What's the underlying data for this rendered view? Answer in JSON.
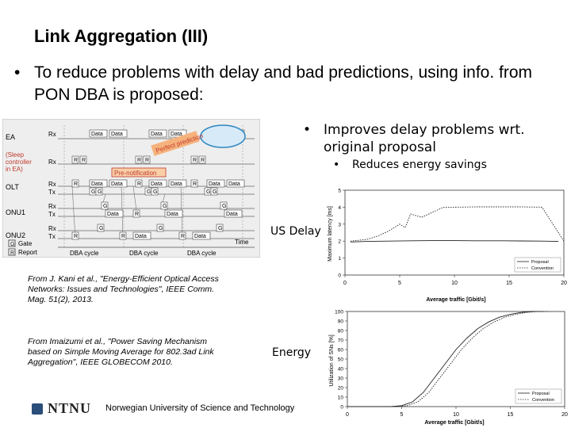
{
  "slide": {
    "title": "Link Aggregation (III)",
    "bullet_main": "To reduce problems with delay and bad predictions, using info. from PON DBA is proposed:",
    "bullet_sub1": "Improves delay problems wrt. original proposal",
    "bullet_sub2": "Reduces energy savings",
    "label_us_delay": "US Delay",
    "label_energy": "Energy",
    "citation1": "From J. Kani et al., \"Energy-Efficient Optical Access Networks: Issues and Technologies\", IEEE Comm. Mag. 51(2), 2013.",
    "citation2": "From Imaizumi et al., \"Power Saving Mechanism based on Simple Moving Average for 802.3ad Link Aggregation\", IEEE GLOBECOM 2010.",
    "footer": "Norwegian University of Science and Technology",
    "logo_text": "NTNU",
    "bullet_glyph": "•"
  },
  "diagram": {
    "rows": [
      "EA",
      "OLT",
      "ONU1",
      "ONU2"
    ],
    "ea_note": [
      "(Sleep",
      "controller",
      "in EA)"
    ],
    "signals": [
      "Rx",
      "Tx"
    ],
    "data_label": "Data",
    "gate_label": "G",
    "report_label": "R",
    "callout_prediction": "Perfect prediction",
    "callout_prenotification": "Pre-notification",
    "legend_gate": "Gate",
    "legend_report": "Report",
    "time_label": "Time",
    "cycle_label": "DBA cycle",
    "colors": {
      "callout_fill": "#f6b27d",
      "callout_text": "#c0392b",
      "ellipse": "#2e86c1",
      "prenote_fill": "#f9cfa8"
    }
  },
  "chart_data": [
    {
      "type": "line",
      "title": "",
      "xlabel": "Average traffic [Gbit/s]",
      "ylabel": "Maximum latency [ms]",
      "xlim": [
        0,
        20
      ],
      "ylim": [
        0,
        5
      ],
      "x_ticks": [
        "0",
        "5",
        "10",
        "15",
        "20"
      ],
      "y_ticks": [
        "0",
        "1",
        "2",
        "3",
        "4",
        "5"
      ],
      "legend_position": "bottom-right",
      "series": [
        {
          "name": "Proposal",
          "style": "solid",
          "x": [
            0.5,
            2,
            4,
            6,
            8,
            10,
            12,
            14,
            16,
            18,
            19.5
          ],
          "y": [
            1.95,
            1.98,
            2.0,
            2.02,
            2.03,
            2.03,
            2.02,
            2.02,
            2.01,
            2.0,
            1.98
          ]
        },
        {
          "name": "Convention",
          "style": "dotted",
          "x": [
            0.5,
            2,
            3,
            4,
            5,
            5.5,
            6,
            7,
            8,
            9,
            10,
            12,
            14,
            16,
            18,
            19,
            19.5,
            20
          ],
          "y": [
            2.0,
            2.1,
            2.3,
            2.6,
            3.0,
            2.8,
            3.6,
            3.4,
            3.7,
            4.0,
            4.0,
            4.02,
            4.02,
            4.02,
            4.0,
            3.0,
            2.5,
            2.0
          ]
        }
      ]
    },
    {
      "type": "line",
      "title": "",
      "xlabel": "Average traffic [Gbit/s]",
      "ylabel": "Utilization of SNs [%]",
      "xlim": [
        0,
        20
      ],
      "ylim": [
        0,
        100
      ],
      "x_ticks": [
        "0",
        "5",
        "10",
        "15",
        "20"
      ],
      "y_ticks": [
        "0",
        "10",
        "20",
        "30",
        "40",
        "50",
        "60",
        "70",
        "80",
        "90",
        "100"
      ],
      "legend_position": "bottom-right",
      "series": [
        {
          "name": "Proposal",
          "style": "solid",
          "x": [
            0,
            4,
            5,
            6,
            7,
            8,
            9,
            10,
            11,
            12,
            13,
            14,
            15,
            16,
            17,
            18
          ],
          "y": [
            0,
            0,
            1,
            5,
            15,
            30,
            45,
            60,
            72,
            82,
            89,
            94,
            97,
            99,
            100,
            100
          ]
        },
        {
          "name": "Convention",
          "style": "dotted",
          "x": [
            0,
            4.5,
            5.5,
            6.5,
            7.5,
            8.5,
            9.5,
            10.5,
            11.5,
            12.5,
            13.5,
            14.5,
            15.5,
            16.5,
            17.5,
            18.5
          ],
          "y": [
            0,
            0,
            1,
            5,
            15,
            30,
            45,
            60,
            72,
            82,
            89,
            94,
            97,
            99,
            100,
            100
          ]
        }
      ]
    }
  ]
}
